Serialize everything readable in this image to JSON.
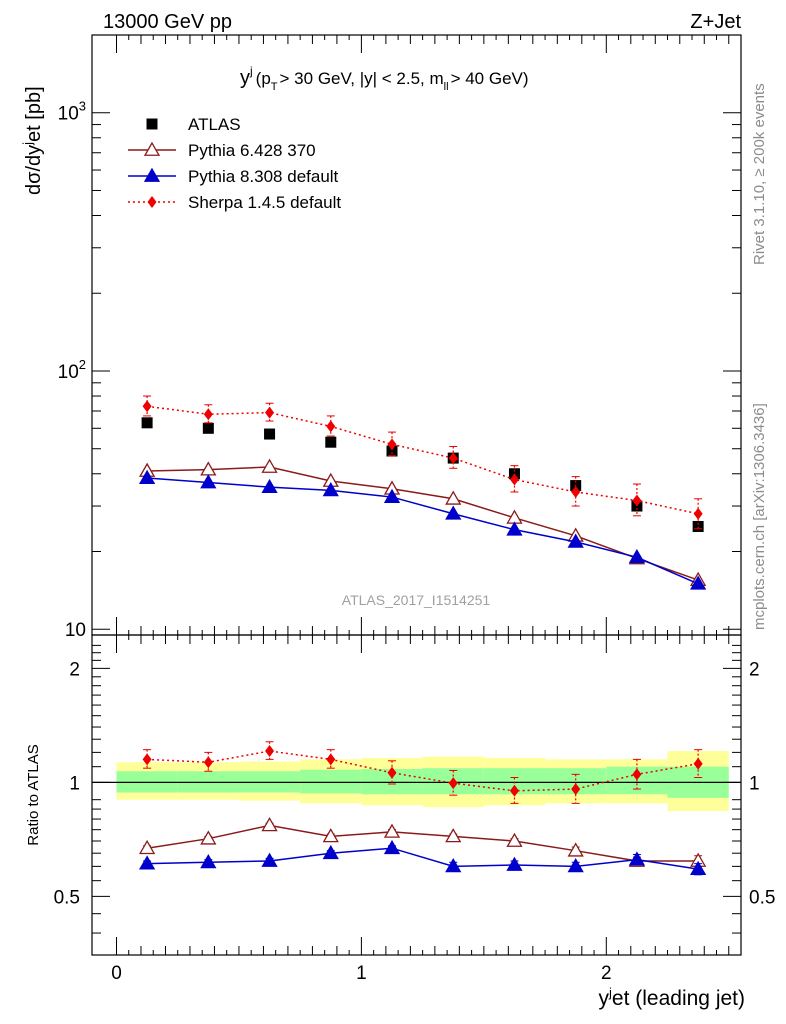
{
  "header": {
    "left": "13000 GeV pp",
    "right": "Z+Jet"
  },
  "side_labels": {
    "rivet": "Rivet 3.1.10, ≥ 200k events",
    "mcplots": "mcplots.cern.ch [arXiv:1306.3436]"
  },
  "chart_data": [
    {
      "panel": "main",
      "type": "scatter",
      "title": {
        "y": "y",
        "j": "j",
        "open": "(p",
        "T": "T",
        "mid": "> 30 GeV, |y| < 2.5, m",
        "ll": "ll",
        "close": "> 40 GeV)"
      },
      "watermark": "ATLAS_2017_I1514251",
      "ylabel": {
        "a": "dσ/dy",
        "j": "j",
        "b": "et [pb]"
      },
      "xlim": [
        -0.1,
        2.55
      ],
      "ylim": [
        9.5,
        2000
      ],
      "yscale": "log",
      "y_ticks": [
        {
          "value": 10,
          "label": "10"
        },
        {
          "value": 100,
          "base": "10",
          "exp": "2"
        },
        {
          "value": 1000,
          "base": "10",
          "exp": "3"
        }
      ],
      "x": [
        0.125,
        0.375,
        0.625,
        0.875,
        1.125,
        1.375,
        1.625,
        1.875,
        2.125,
        2.375
      ],
      "series": [
        {
          "name": "ATLAS",
          "marker": "square",
          "color": "#000000",
          "values": [
            63,
            60,
            57,
            53,
            49,
            46,
            40,
            36,
            30,
            25
          ]
        },
        {
          "name": "Pythia 6.428 370",
          "marker": "open-triangle",
          "color": "#8b1a1a",
          "line": "solid",
          "values": [
            41,
            41.5,
            42.5,
            37.5,
            35,
            32,
            27,
            23,
            18.8,
            15.5
          ]
        },
        {
          "name": "Pythia 8.308 default",
          "marker": "triangle",
          "color": "#0000cc",
          "line": "solid",
          "values": [
            38.5,
            37,
            35.5,
            34.5,
            32.5,
            28,
            24.3,
            21.8,
            19,
            15
          ]
        },
        {
          "name": "Sherpa 1.4.5 default",
          "marker": "diamond",
          "color": "#ee0000",
          "line": "dotted",
          "values": [
            73,
            68,
            69,
            61,
            52,
            46,
            38,
            34,
            31.5,
            28
          ],
          "err_low": [
            6,
            5,
            5,
            5,
            5,
            4,
            4,
            4,
            4,
            3.5
          ],
          "err_high": [
            7,
            6,
            6,
            6,
            6,
            5,
            5,
            5,
            5,
            4
          ]
        }
      ],
      "legend_position": "top-left"
    },
    {
      "panel": "ratio",
      "type": "line",
      "ylabel": "Ratio to ATLAS",
      "xlabel": {
        "a": "y",
        "j": "j",
        "b": "et (leading jet)"
      },
      "xlim": [
        -0.1,
        2.55
      ],
      "ylim": [
        0.35,
        2.45
      ],
      "yscale": "log",
      "y_ticks": [
        {
          "value": 0.5,
          "label": "0.5"
        },
        {
          "value": 1,
          "label": "1"
        },
        {
          "value": 2,
          "label": "2"
        }
      ],
      "x_ticks": [
        {
          "value": 0,
          "label": "0"
        },
        {
          "value": 1,
          "label": "1"
        },
        {
          "value": 2,
          "label": "2"
        }
      ],
      "reference_line": 1,
      "bands": {
        "edges": [
          0,
          0.25,
          0.5,
          0.75,
          1.0,
          1.25,
          1.5,
          1.75,
          2.0,
          2.25,
          2.5
        ],
        "inner_low": [
          0.94,
          0.94,
          0.94,
          0.935,
          0.93,
          0.93,
          0.93,
          0.93,
          0.93,
          0.91
        ],
        "inner_high": [
          1.07,
          1.07,
          1.07,
          1.08,
          1.085,
          1.09,
          1.09,
          1.09,
          1.1,
          1.1
        ],
        "outer_low": [
          0.9,
          0.9,
          0.895,
          0.88,
          0.87,
          0.86,
          0.87,
          0.88,
          0.88,
          0.84
        ],
        "outer_high": [
          1.13,
          1.13,
          1.135,
          1.15,
          1.16,
          1.17,
          1.16,
          1.15,
          1.15,
          1.21
        ]
      },
      "x": [
        0.125,
        0.375,
        0.625,
        0.875,
        1.125,
        1.375,
        1.625,
        1.875,
        2.125,
        2.375
      ],
      "series": [
        {
          "name": "Pythia 6.428 370",
          "marker": "open-triangle",
          "color": "#8b1a1a",
          "line": "solid",
          "values": [
            0.67,
            0.71,
            0.77,
            0.72,
            0.74,
            0.72,
            0.7,
            0.66,
            0.62,
            0.62
          ],
          "err": [
            0.01,
            0.01,
            0.01,
            0.01,
            0.01,
            0.01,
            0.01,
            0.015,
            0.015,
            0.02
          ]
        },
        {
          "name": "Pythia 8.308 default",
          "marker": "triangle",
          "color": "#0000cc",
          "line": "solid",
          "values": [
            0.61,
            0.615,
            0.62,
            0.65,
            0.67,
            0.6,
            0.605,
            0.6,
            0.625,
            0.59
          ],
          "err": [
            0.01,
            0.01,
            0.01,
            0.01,
            0.01,
            0.015,
            0.015,
            0.015,
            0.02,
            0.02
          ]
        },
        {
          "name": "Sherpa 1.4.5 default",
          "marker": "diamond",
          "color": "#ee0000",
          "line": "dotted",
          "values": [
            1.15,
            1.13,
            1.21,
            1.15,
            1.06,
            0.995,
            0.95,
            0.96,
            1.05,
            1.12
          ],
          "err_low": [
            0.06,
            0.06,
            0.06,
            0.06,
            0.07,
            0.07,
            0.07,
            0.08,
            0.09,
            0.09
          ],
          "err_high": [
            0.07,
            0.07,
            0.07,
            0.07,
            0.08,
            0.08,
            0.08,
            0.09,
            0.1,
            0.1
          ]
        }
      ]
    }
  ]
}
